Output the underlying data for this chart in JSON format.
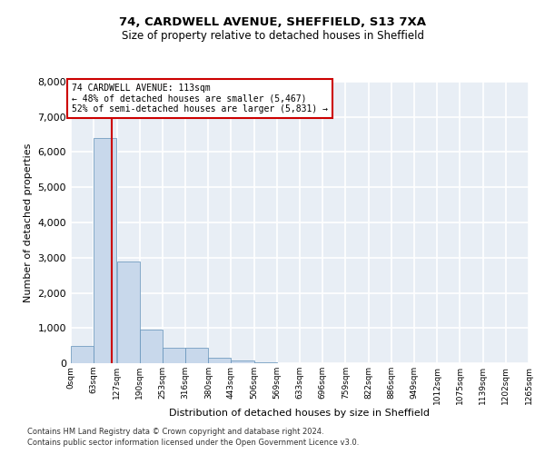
{
  "title_line1": "74, CARDWELL AVENUE, SHEFFIELD, S13 7XA",
  "title_line2": "Size of property relative to detached houses in Sheffield",
  "xlabel": "Distribution of detached houses by size in Sheffield",
  "ylabel": "Number of detached properties",
  "annotation_line1": "74 CARDWELL AVENUE: 113sqm",
  "annotation_line2": "← 48% of detached houses are smaller (5,467)",
  "annotation_line3": "52% of semi-detached houses are larger (5,831) →",
  "bar_values": [
    490,
    6400,
    2900,
    950,
    430,
    430,
    150,
    80,
    30,
    0,
    0,
    0,
    0,
    0,
    0,
    0,
    0,
    0,
    0,
    0
  ],
  "bin_edges": [
    0,
    63,
    127,
    190,
    253,
    316,
    380,
    443,
    506,
    569,
    633,
    696,
    759,
    822,
    886,
    949,
    1012,
    1075,
    1139,
    1202,
    1265
  ],
  "bin_labels": [
    "0sqm",
    "63sqm",
    "127sqm",
    "190sqm",
    "253sqm",
    "316sqm",
    "380sqm",
    "443sqm",
    "506sqm",
    "569sqm",
    "633sqm",
    "696sqm",
    "759sqm",
    "822sqm",
    "886sqm",
    "949sqm",
    "1012sqm",
    "1075sqm",
    "1139sqm",
    "1202sqm",
    "1265sqm"
  ],
  "bar_color": "#c8d8eb",
  "bar_edge_color": "#6090b8",
  "vline_x": 113,
  "vline_color": "#cc0000",
  "annotation_box_color": "#cc0000",
  "ylim": [
    0,
    8000
  ],
  "yticks": [
    0,
    1000,
    2000,
    3000,
    4000,
    5000,
    6000,
    7000,
    8000
  ],
  "bg_color": "#e8eef5",
  "grid_color": "#ffffff",
  "footer_line1": "Contains HM Land Registry data © Crown copyright and database right 2024.",
  "footer_line2": "Contains public sector information licensed under the Open Government Licence v3.0."
}
